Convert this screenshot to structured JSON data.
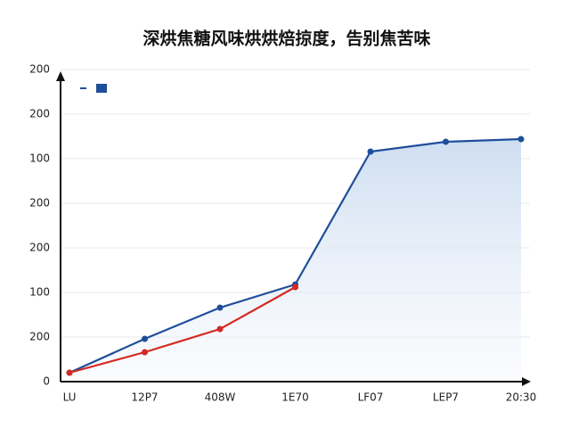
{
  "chart_data": {
    "type": "line",
    "title": "深烘焦糖风味烘烘焙掠度，告别焦苦味",
    "categories": [
      "LU",
      "12P7",
      "408W",
      "1E70",
      "LF07",
      "LEP7",
      "20:30"
    ],
    "series": [
      {
        "color": "#1f4e9a",
        "values": [
          0.2,
          0.96,
          1.66,
          2.18,
          5.16,
          5.38,
          5.44
        ],
        "area": true
      },
      {
        "color": "#d42a22",
        "values": [
          0.2,
          0.66,
          1.18,
          2.12,
          null,
          null,
          null
        ]
      }
    ],
    "ylim": [
      0,
      7
    ],
    "yticks": [
      0,
      {
        "value": 1,
        "label": "200"
      },
      {
        "value": 2,
        "label": "100"
      },
      {
        "value": 3,
        "label": "200"
      },
      {
        "value": 4,
        "label": "200"
      },
      {
        "value": 5,
        "label": "100"
      },
      {
        "value": 6,
        "label": "200"
      },
      {
        "value": 7,
        "label": "200"
      }
    ],
    "grid": true
  }
}
